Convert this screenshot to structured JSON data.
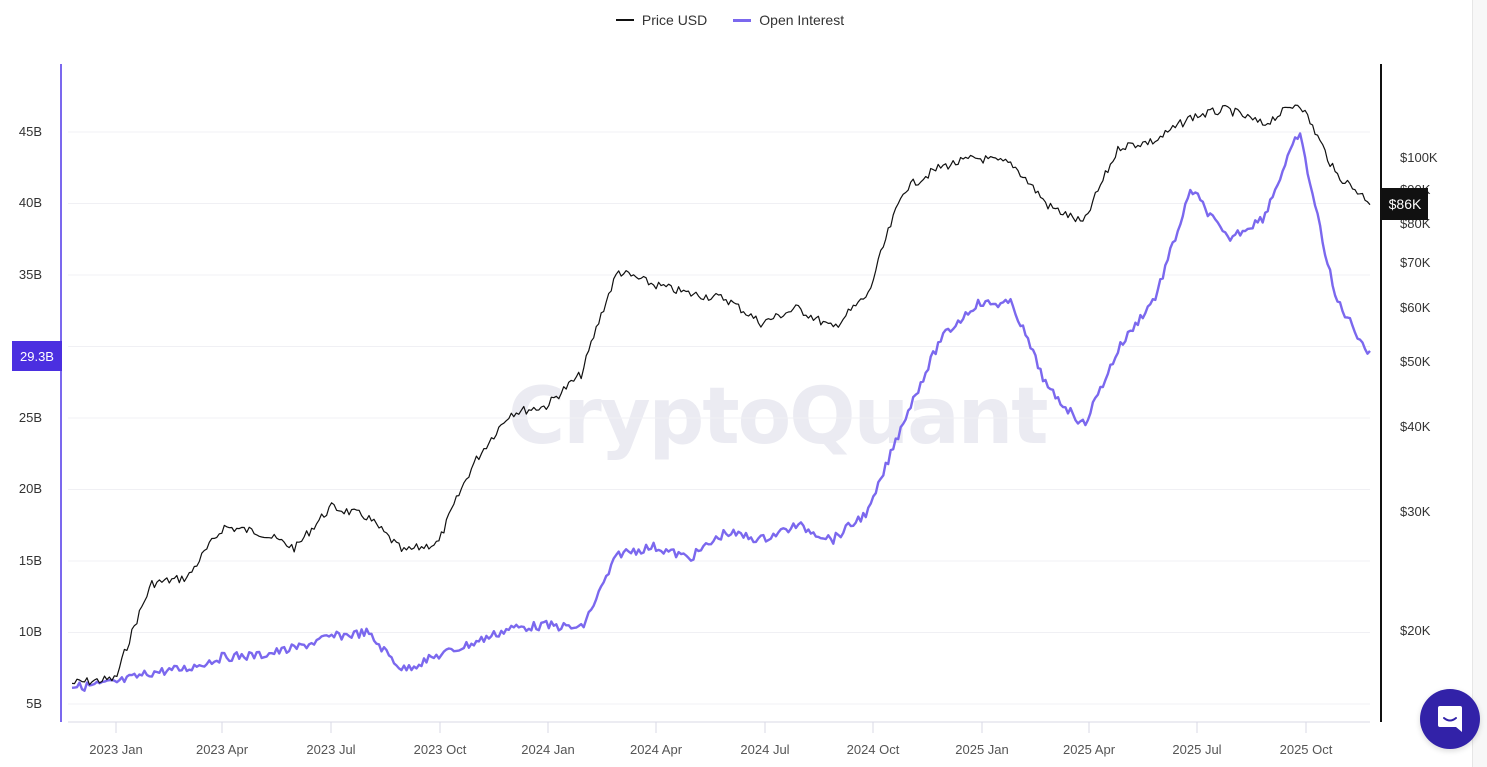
{
  "legend": {
    "items": [
      {
        "label": "Price USD",
        "color": "#111111"
      },
      {
        "label": "Open Interest",
        "color": "#7b68ee"
      }
    ]
  },
  "watermark": "CryptoQuant",
  "axes": {
    "left": {
      "ticks": [
        "45B",
        "40B",
        "35B",
        "25B",
        "20B",
        "15B",
        "10B",
        "5B"
      ],
      "current_badge": "29.3B",
      "color": "#7b68ee"
    },
    "right": {
      "ticks": [
        "$100K",
        "$90K",
        "$80K",
        "$70K",
        "$60K",
        "$50K",
        "$40K",
        "$30K",
        "$20K"
      ],
      "current_badge": "$86K"
    },
    "x": {
      "ticks": [
        "2023 Jan",
        "2023 Apr",
        "2023 Jul",
        "2023 Oct",
        "2024 Jan",
        "2024 Apr",
        "2024 Jul",
        "2024 Oct",
        "2025 Jan",
        "2025 Apr",
        "2025 Jul",
        "2025 Oct"
      ]
    }
  },
  "chart_data": {
    "type": "line",
    "title": "",
    "legend_position": "top",
    "grid": true,
    "x": [
      "2022-11",
      "2022-12",
      "2023-01",
      "2023-02",
      "2023-03",
      "2023-04",
      "2023-05",
      "2023-06",
      "2023-07",
      "2023-08",
      "2023-09",
      "2023-10",
      "2023-11",
      "2023-12",
      "2024-01",
      "2024-02",
      "2024-03",
      "2024-04",
      "2024-05",
      "2024-06",
      "2024-07",
      "2024-08",
      "2024-09",
      "2024-10",
      "2024-11",
      "2024-12",
      "2025-01",
      "2025-02",
      "2025-03",
      "2025-04",
      "2025-05",
      "2025-06",
      "2025-07",
      "2025-08",
      "2025-09",
      "2025-10",
      "2025-11",
      "2025-12"
    ],
    "series": [
      {
        "name": "Price USD",
        "axis": "right",
        "scale": "log",
        "color": "#111111",
        "values": [
          16500,
          16800,
          17000,
          23500,
          24000,
          28500,
          28000,
          26500,
          30500,
          29500,
          26200,
          27000,
          35500,
          42000,
          43000,
          48000,
          68000,
          65000,
          63000,
          62000,
          57000,
          60000,
          56000,
          63000,
          90000,
          97000,
          100000,
          98000,
          85000,
          80000,
          104000,
          106000,
          115000,
          118000,
          112000,
          121000,
          95000,
          86000
        ]
      },
      {
        "name": "Open Interest",
        "axis": "left",
        "unit": "USD billions",
        "color": "#7b68ee",
        "values": [
          6.6,
          6.2,
          6.5,
          7.2,
          7.5,
          8.3,
          8.4,
          8.9,
          9.7,
          10.0,
          7.4,
          8.4,
          9.3,
          10.3,
          10.5,
          10.3,
          15.5,
          16.0,
          15.2,
          17.0,
          16.5,
          17.5,
          16.5,
          18.5,
          25.0,
          30.5,
          33.0,
          33.0,
          27.0,
          24.5,
          30.0,
          33.5,
          41.0,
          37.5,
          39.0,
          45.0,
          33.5,
          29.3
        ]
      }
    ],
    "ylabel_left": "Open Interest",
    "ylabel_right": "Price USD",
    "ylim_left": [
      4,
      50
    ],
    "ylim_right_ticks": [
      20000,
      30000,
      40000,
      50000,
      60000,
      70000,
      80000,
      90000,
      100000
    ],
    "current_values": {
      "open_interest": "29.3B",
      "price": "$86K"
    }
  },
  "chat_button": {
    "label": "chat-support"
  }
}
